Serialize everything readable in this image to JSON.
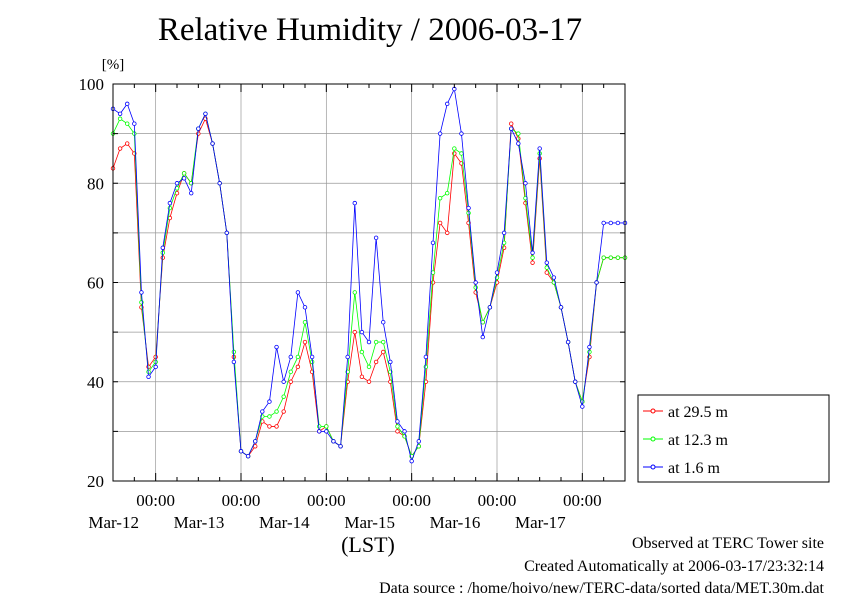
{
  "chart_data": {
    "type": "line",
    "title": "Relative Humidity / 2006-03-17",
    "ylabel": "[%]",
    "xlabel": "(LST)",
    "ylim": [
      20,
      100
    ],
    "yticks": [
      "20",
      "40",
      "60",
      "80",
      "100"
    ],
    "xlim": [
      0,
      144
    ],
    "x_unit": "hours from 2006-03-11 12:00 LST",
    "xticks": [
      {
        "x": 12,
        "time": "00:00",
        "date": "Mar-12"
      },
      {
        "x": 36,
        "time": "00:00",
        "date": "Mar-13"
      },
      {
        "x": 60,
        "time": "00:00",
        "date": "Mar-14"
      },
      {
        "x": 84,
        "time": "00:00",
        "date": "Mar-15"
      },
      {
        "x": 108,
        "time": "00:00",
        "date": "Mar-16"
      },
      {
        "x": 132,
        "time": "00:00",
        "date": "Mar-17"
      }
    ],
    "grid": true,
    "legend_position": "right, below plot",
    "x": [
      0,
      2,
      4,
      6,
      8,
      10,
      12,
      14,
      16,
      18,
      20,
      22,
      24,
      26,
      28,
      30,
      32,
      34,
      36,
      38,
      40,
      42,
      44,
      46,
      48,
      50,
      52,
      54,
      56,
      58,
      60,
      62,
      64,
      66,
      68,
      70,
      72,
      74,
      76,
      78,
      80,
      82,
      84,
      86,
      88,
      90,
      92,
      94,
      96,
      98,
      100,
      102,
      104,
      106,
      108,
      110,
      112,
      114,
      116,
      118,
      120,
      122,
      124,
      126,
      128,
      130,
      132,
      134,
      136,
      138,
      140,
      142,
      144
    ],
    "series": [
      {
        "name": "at 29.5 m",
        "color": "#ff0000",
        "values": [
          83,
          87,
          88,
          86,
          55,
          43,
          45,
          65,
          73,
          78,
          82,
          80,
          90,
          93,
          88,
          80,
          70,
          45,
          26,
          25,
          27,
          32,
          31,
          31,
          34,
          40,
          43,
          48,
          42,
          30,
          31,
          28,
          27,
          40,
          50,
          41,
          40,
          44,
          46,
          40,
          30,
          29,
          25,
          27,
          40,
          60,
          72,
          70,
          86,
          84,
          72,
          58,
          52,
          55,
          60,
          67,
          92,
          89,
          76,
          64,
          85,
          62,
          60,
          55,
          48,
          40,
          36,
          45,
          60,
          65,
          65,
          65,
          65
        ]
      },
      {
        "name": "at 12.3 m",
        "color": "#00ff00",
        "values": [
          90,
          93,
          92,
          90,
          56,
          42,
          44,
          66,
          75,
          79,
          82,
          80,
          91,
          94,
          88,
          80,
          70,
          46,
          26,
          25,
          28,
          33,
          33,
          34,
          37,
          42,
          45,
          52,
          44,
          31,
          31,
          28,
          27,
          42,
          58,
          46,
          43,
          48,
          48,
          42,
          31,
          29,
          25,
          27,
          43,
          62,
          77,
          78,
          87,
          86,
          74,
          59,
          52,
          55,
          61,
          68,
          91,
          90,
          77,
          65,
          86,
          63,
          60,
          55,
          48,
          40,
          36,
          46,
          60,
          65,
          65,
          65,
          65
        ]
      },
      {
        "name": "at 1.6 m",
        "color": "#0000ff",
        "values": [
          95,
          94,
          96,
          92,
          58,
          41,
          43,
          67,
          76,
          80,
          81,
          78,
          91,
          94,
          88,
          80,
          70,
          44,
          26,
          25,
          28,
          34,
          36,
          47,
          40,
          45,
          58,
          55,
          45,
          30,
          30,
          28,
          27,
          45,
          76,
          50,
          48,
          69,
          52,
          44,
          32,
          30,
          24,
          28,
          45,
          68,
          90,
          96,
          99,
          90,
          75,
          60,
          49,
          55,
          62,
          70,
          91,
          88,
          80,
          66,
          87,
          64,
          61,
          55,
          48,
          40,
          35,
          47,
          60,
          72,
          72,
          72,
          72
        ]
      }
    ]
  },
  "footer": {
    "line1": "Observed at TERC Tower site",
    "line2": "Created Automatically at 2006-03-17/23:32:14",
    "line3": "Data source : /home/hoivo/new/TERC-data/sorted  data/MET.30m.dat"
  }
}
